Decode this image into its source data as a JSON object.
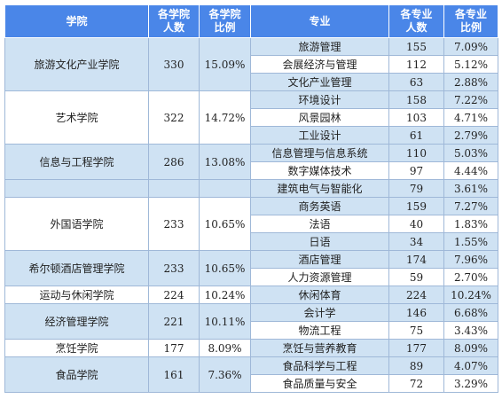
{
  "headers": {
    "college": "学院",
    "college_count": [
      "各学院",
      "人数"
    ],
    "college_ratio": [
      "各学院",
      "比例"
    ],
    "major": "专业",
    "major_count": [
      "各专业",
      "人数"
    ],
    "major_ratio": [
      "各专业",
      "比例"
    ]
  },
  "colors": {
    "header": "#4a86e8",
    "band": "#cfe2f3",
    "border": "#9fb8d8"
  },
  "colleges": [
    {
      "name": "旅游文化产业学院",
      "count": "330",
      "ratio": "15.09%",
      "shade": "blue",
      "majors": [
        {
          "name": "旅游管理",
          "count": "155",
          "ratio": "7.09%"
        },
        {
          "name": "会展经济与管理",
          "count": "112",
          "ratio": "5.12%"
        },
        {
          "name": "文化产业管理",
          "count": "63",
          "ratio": "2.88%"
        }
      ]
    },
    {
      "name": "艺术学院",
      "count": "322",
      "ratio": "14.72%",
      "shade": "white",
      "majors": [
        {
          "name": "环境设计",
          "count": "158",
          "ratio": "7.22%"
        },
        {
          "name": "风景园林",
          "count": "103",
          "ratio": "4.71%"
        },
        {
          "name": "工业设计",
          "count": "61",
          "ratio": "2.79%"
        }
      ]
    },
    {
      "name": "信息与工程学院",
      "count": "286",
      "ratio": "13.08%",
      "shade": "blue",
      "majors": [
        {
          "name": "信息管理与信息系统",
          "count": "110",
          "ratio": "5.03%"
        },
        {
          "name": "数字媒体技术",
          "count": "97",
          "ratio": "4.44%"
        }
      ]
    },
    {
      "name": "",
      "count": "",
      "ratio": "",
      "shade": "blue",
      "majors": [
        {
          "name": "建筑电气与智能化",
          "count": "79",
          "ratio": "3.61%"
        }
      ]
    },
    {
      "name": "外国语学院",
      "count": "233",
      "ratio": "10.65%",
      "shade": "white",
      "majors": [
        {
          "name": "商务英语",
          "count": "159",
          "ratio": "7.27%"
        },
        {
          "name": "法语",
          "count": "40",
          "ratio": "1.83%"
        },
        {
          "name": "日语",
          "count": "34",
          "ratio": "1.55%"
        }
      ]
    },
    {
      "name": "希尔顿酒店管理学院",
      "count": "233",
      "ratio": "10.65%",
      "shade": "blue",
      "majors": [
        {
          "name": "酒店管理",
          "count": "174",
          "ratio": "7.96%"
        },
        {
          "name": "人力资源管理",
          "count": "59",
          "ratio": "2.70%"
        }
      ]
    },
    {
      "name": "运动与休闲学院",
      "count": "224",
      "ratio": "10.24%",
      "shade": "white",
      "majors": [
        {
          "name": "休闲体育",
          "count": "224",
          "ratio": "10.24%"
        }
      ]
    },
    {
      "name": "经济管理学院",
      "count": "221",
      "ratio": "10.11%",
      "shade": "blue",
      "majors": [
        {
          "name": "会计学",
          "count": "146",
          "ratio": "6.68%"
        },
        {
          "name": "物流工程",
          "count": "75",
          "ratio": "3.43%"
        }
      ]
    },
    {
      "name": "烹饪学院",
      "count": "177",
      "ratio": "8.09%",
      "shade": "white",
      "majors": [
        {
          "name": "烹饪与营养教育",
          "count": "177",
          "ratio": "8.09%"
        }
      ]
    },
    {
      "name": "食品学院",
      "count": "161",
      "ratio": "7.36%",
      "shade": "blue",
      "majors": [
        {
          "name": "食品科学与工程",
          "count": "89",
          "ratio": "4.07%"
        },
        {
          "name": "食品质量与安全",
          "count": "72",
          "ratio": "3.29%"
        }
      ]
    }
  ]
}
